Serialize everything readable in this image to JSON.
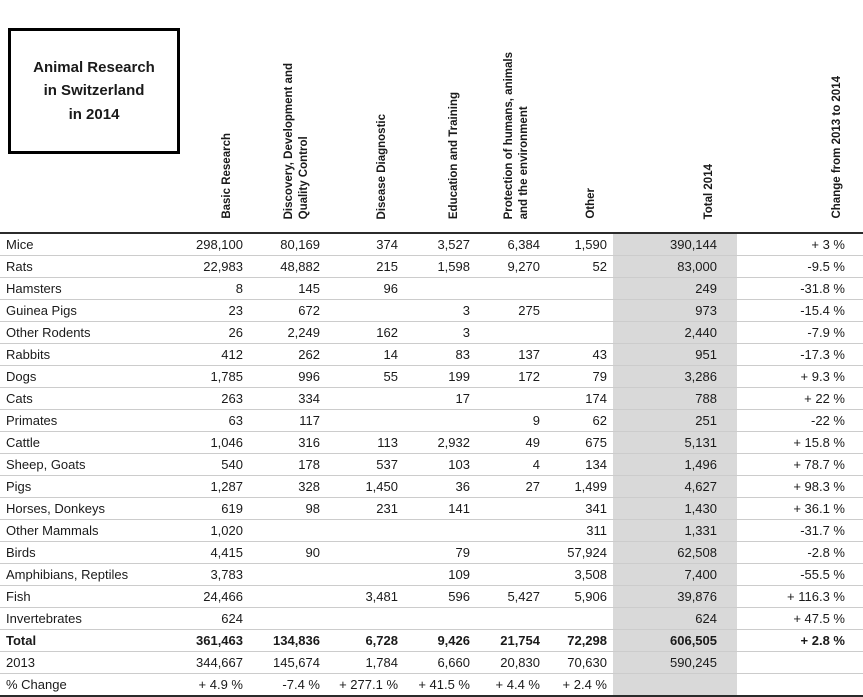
{
  "title": {
    "lines": [
      "Animal Research",
      "in Switzerland",
      "in 2014"
    ]
  },
  "colors": {
    "total_column_bg": "#d9d9d9",
    "rule_dark": "#2b2b2b",
    "rule_light": "#cccccc"
  },
  "chart_data": {
    "type": "table",
    "title": "Animal Research in Switzerland in 2014",
    "columns": [
      "Basic Research",
      "Discovery, Development and\nQuality Control",
      "Disease Diagnostic",
      "Education and Training",
      "Protection of humans, animals\nand the environment",
      "Other",
      "Total 2014",
      "Change from 2013 to 2014"
    ],
    "rows": [
      {
        "label": "Mice",
        "cells": [
          "298,100",
          "80,169",
          "374",
          "3,527",
          "6,384",
          "1,590",
          "390,144",
          "+ 3 %"
        ]
      },
      {
        "label": "Rats",
        "cells": [
          "22,983",
          "48,882",
          "215",
          "1,598",
          "9,270",
          "52",
          "83,000",
          "-9.5 %"
        ]
      },
      {
        "label": "Hamsters",
        "cells": [
          "8",
          "145",
          "96",
          "",
          "",
          "",
          "249",
          "-31.8 %"
        ]
      },
      {
        "label": "Guinea Pigs",
        "cells": [
          "23",
          "672",
          "",
          "3",
          "275",
          "",
          "973",
          "-15.4 %"
        ]
      },
      {
        "label": "Other Rodents",
        "cells": [
          "26",
          "2,249",
          "162",
          "3",
          "",
          "",
          "2,440",
          "-7.9 %"
        ]
      },
      {
        "label": "Rabbits",
        "cells": [
          "412",
          "262",
          "14",
          "83",
          "137",
          "43",
          "951",
          "-17.3 %"
        ]
      },
      {
        "label": "Dogs",
        "cells": [
          "1,785",
          "996",
          "55",
          "199",
          "172",
          "79",
          "3,286",
          "+ 9.3 %"
        ]
      },
      {
        "label": "Cats",
        "cells": [
          "263",
          "334",
          "",
          "17",
          "",
          "174",
          "788",
          "+ 22 %"
        ]
      },
      {
        "label": "Primates",
        "cells": [
          "63",
          "117",
          "",
          "",
          "9",
          "62",
          "251",
          "-22 %"
        ]
      },
      {
        "label": "Cattle",
        "cells": [
          "1,046",
          "316",
          "113",
          "2,932",
          "49",
          "675",
          "5,131",
          "+ 15.8 %"
        ]
      },
      {
        "label": "Sheep, Goats",
        "cells": [
          "540",
          "178",
          "537",
          "103",
          "4",
          "134",
          "1,496",
          "+ 78.7 %"
        ]
      },
      {
        "label": "Pigs",
        "cells": [
          "1,287",
          "328",
          "1,450",
          "36",
          "27",
          "1,499",
          "4,627",
          "+ 98.3 %"
        ]
      },
      {
        "label": "Horses, Donkeys",
        "cells": [
          "619",
          "98",
          "231",
          "141",
          "",
          "341",
          "1,430",
          "+ 36.1 %"
        ]
      },
      {
        "label": "Other Mammals",
        "cells": [
          "1,020",
          "",
          "",
          "",
          "",
          "311",
          "1,331",
          "-31.7 %"
        ]
      },
      {
        "label": "Birds",
        "cells": [
          "4,415",
          "90",
          "",
          "79",
          "",
          "57,924",
          "62,508",
          "-2.8 %"
        ]
      },
      {
        "label": "Amphibians, Reptiles",
        "cells": [
          "3,783",
          "",
          "",
          "109",
          "",
          "3,508",
          "7,400",
          "-55.5 %"
        ]
      },
      {
        "label": "Fish",
        "cells": [
          "24,466",
          "",
          "3,481",
          "596",
          "5,427",
          "5,906",
          "39,876",
          "+ 116.3 %"
        ]
      },
      {
        "label": "Invertebrates",
        "cells": [
          "624",
          "",
          "",
          "",
          "",
          "",
          "624",
          "+ 47.5 %"
        ]
      },
      {
        "label": "Total",
        "bold": true,
        "cells": [
          "361,463",
          "134,836",
          "6,728",
          "9,426",
          "21,754",
          "72,298",
          "606,505",
          "+ 2.8 %"
        ]
      },
      {
        "label": "2013",
        "cells": [
          "344,667",
          "145,674",
          "1,784",
          "6,660",
          "20,830",
          "70,630",
          "590,245",
          ""
        ]
      },
      {
        "label": "% Change",
        "cells": [
          "+ 4.9 %",
          "-7.4 %",
          "+ 277.1 %",
          "+ 41.5 %",
          "+ 4.4 %",
          "+ 2.4 %",
          "",
          ""
        ]
      }
    ]
  }
}
